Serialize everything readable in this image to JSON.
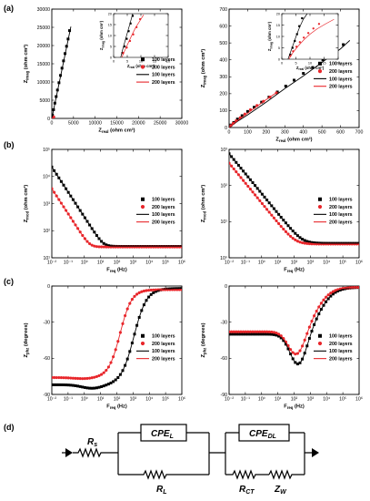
{
  "panel_labels": [
    "(a)",
    "(b)",
    "(c)",
    "(d)"
  ],
  "legend_labels": [
    "100 layers",
    "200 layers",
    "100 layers",
    "200 layers"
  ],
  "colors": {
    "l100": "#000000",
    "l200": "#e8262b"
  },
  "chart_data": [
    {
      "id": "a-left",
      "type": "scatter",
      "xlabel": "Z",
      "xlabel_sub": "real",
      "xlabel_unit": " (ohm cm²)",
      "ylabel": "Z",
      "ylabel_sub": "imag",
      "ylabel_unit": " (ohm cm²)",
      "xlim": [
        0,
        30000
      ],
      "ylim": [
        0,
        30000
      ],
      "xticks": [
        0,
        5000,
        10000,
        15000,
        20000,
        25000,
        30000
      ],
      "xticklabels": [
        "0",
        "5000",
        "10000",
        "15000",
        "20000",
        "25000",
        "30000"
      ],
      "yticks": [
        0,
        5000,
        10000,
        15000,
        20000,
        25000,
        30000
      ],
      "yticklabels": [
        "0",
        "5000",
        "10000",
        "15000",
        "20000",
        "25000",
        "30000"
      ],
      "legend": "right",
      "series": [
        {
          "name": "100 layers",
          "kind": "points",
          "color": "l100",
          "x": [
            150,
            400,
            700,
            1000,
            1300,
            1650,
            2000,
            2350,
            2700,
            3050,
            3400,
            3750,
            4100
          ],
          "y": [
            900,
            2400,
            4200,
            6000,
            7800,
            9800,
            11800,
            13800,
            15800,
            17800,
            19800,
            21800,
            24100
          ]
        },
        {
          "name": "200 layers",
          "kind": "points",
          "color": "l200",
          "x": [
            40,
            80,
            120,
            170,
            230,
            300,
            370,
            450
          ],
          "y": [
            30,
            60,
            100,
            150,
            210,
            280,
            350,
            430
          ]
        },
        {
          "name": "100 layers",
          "kind": "line",
          "color": "l100",
          "x": [
            0,
            4400
          ],
          "y": [
            0,
            25200
          ]
        },
        {
          "name": "200 layers",
          "kind": "line",
          "color": "l200",
          "x": [
            0,
            480
          ],
          "y": [
            0,
            470
          ]
        }
      ],
      "inset": {
        "xlabel": "Z",
        "xlabel_sub": "real",
        "xlabel_unit": " (ohm cm²)",
        "ylabel": "Z",
        "ylabel_sub": "imag",
        "ylabel_unit": " (ohm cm²)",
        "xlim": [
          0,
          20
        ],
        "ylim": [
          0,
          20
        ],
        "xticks": [
          0,
          5,
          10,
          15,
          20
        ],
        "xticklabels": [
          "0",
          "5",
          "10",
          "15",
          "20"
        ],
        "yticks": [
          0,
          5,
          10,
          15,
          20
        ],
        "yticklabels": [
          "0",
          "5",
          "10",
          "15",
          "20"
        ],
        "series": [
          {
            "kind": "points",
            "color": "l100",
            "x": [
              3.2,
              4.0,
              4.8,
              5.5,
              6.2,
              7.0
            ],
            "y": [
              2,
              5,
              8.5,
              12,
              15.5,
              19
            ]
          },
          {
            "kind": "points",
            "color": "l200",
            "x": [
              3.5,
              4.8,
              6.0,
              7.2,
              8.4,
              9.7
            ],
            "y": [
              2,
              4.5,
              7.5,
              10.5,
              13.8,
              17.5
            ]
          },
          {
            "kind": "line",
            "color": "l100",
            "x": [
              2.6,
              3.4,
              4.3,
              5.2,
              6.0,
              7.0
            ],
            "y": [
              0,
              4,
              8,
              12,
              15.5,
              20
            ]
          },
          {
            "kind": "line",
            "color": "l200",
            "x": [
              3.0,
              4.2,
              5.5,
              6.8,
              8.0,
              9.5,
              11
            ],
            "y": [
              0,
              3.5,
              7,
              10.5,
              13.5,
              16.5,
              19.5
            ]
          }
        ]
      }
    },
    {
      "id": "a-right",
      "type": "scatter",
      "xlabel": "Z",
      "xlabel_sub": "real",
      "xlabel_unit": " (ohm cm²)",
      "ylabel": "Z",
      "ylabel_sub": "imag",
      "ylabel_unit": " (ohm cm²)",
      "xlim": [
        0,
        700
      ],
      "ylim": [
        0,
        700
      ],
      "xticks": [
        0,
        100,
        200,
        300,
        400,
        500,
        600,
        700
      ],
      "xticklabels": [
        "0",
        "100",
        "200",
        "300",
        "400",
        "500",
        "600",
        "700"
      ],
      "yticks": [
        0,
        100,
        200,
        300,
        400,
        500,
        600,
        700
      ],
      "yticklabels": [
        "0",
        "100",
        "200",
        "300",
        "400",
        "500",
        "600",
        "700"
      ],
      "legend": "right",
      "series": [
        {
          "name": "100 layers",
          "kind": "points",
          "color": "l100",
          "x": [
            10,
            25,
            45,
            70,
            100,
            135,
            175,
            215,
            260,
            305,
            350,
            400,
            450,
            505,
            560,
            615
          ],
          "y": [
            15,
            30,
            50,
            70,
            95,
            120,
            150,
            180,
            210,
            245,
            280,
            320,
            355,
            400,
            445,
            490
          ]
        },
        {
          "name": "200 layers",
          "kind": "points",
          "color": "l200",
          "x": [
            10,
            22,
            38,
            60,
            85,
            115,
            150,
            185,
            220,
            255
          ],
          "y": [
            12,
            25,
            40,
            58,
            80,
            105,
            130,
            155,
            180,
            205
          ]
        },
        {
          "name": "100 layers",
          "kind": "line",
          "color": "l100",
          "x": [
            0,
            50,
            100,
            200,
            300,
            400,
            500,
            600,
            650
          ],
          "y": [
            0,
            40,
            75,
            150,
            230,
            305,
            385,
            465,
            515
          ]
        },
        {
          "name": "200 layers",
          "kind": "line",
          "color": "l200",
          "x": [
            0,
            50,
            100,
            150,
            200,
            260
          ],
          "y": [
            0,
            45,
            85,
            125,
            165,
            210
          ]
        }
      ],
      "inset": {
        "xlabel": "Z",
        "xlabel_sub": "real",
        "xlabel_unit": " (ohm cm²)",
        "ylabel": "Z",
        "ylabel_sub": "imag",
        "ylabel_unit": " (ohm cm²)",
        "xlim": [
          0,
          20
        ],
        "ylim": [
          0,
          20
        ],
        "xticks": [
          0,
          5,
          10,
          15,
          20
        ],
        "xticklabels": [
          "0",
          "5",
          "10",
          "15",
          "20"
        ],
        "yticks": [
          0,
          5,
          10,
          15,
          20
        ],
        "yticklabels": [
          "0",
          "5",
          "10",
          "15",
          "20"
        ],
        "series": [
          {
            "kind": "points",
            "color": "l100",
            "x": [
              3.0,
              3.8,
              4.6,
              5.4,
              6.2,
              7.2
            ],
            "y": [
              2,
              5,
              8,
              11,
              14.5,
              18
            ]
          },
          {
            "kind": "points",
            "color": "l200",
            "x": [
              3.0,
              4.0,
              5.2,
              6.4,
              7.8,
              9.4,
              11.2,
              13.2
            ],
            "y": [
              1.5,
              3.5,
              5.5,
              7.5,
              9.5,
              11.5,
              13.5,
              15.5
            ]
          },
          {
            "kind": "line",
            "color": "l100",
            "x": [
              2.2,
              3.2,
              4.2,
              5.2,
              6.3,
              7.6,
              9.0
            ],
            "y": [
              0,
              3.5,
              7,
              10.5,
              14,
              17.5,
              20
            ]
          },
          {
            "kind": "line",
            "color": "l200",
            "x": [
              2.5,
              4.0,
              5.8,
              7.8,
              10,
              12.5,
              15.5,
              18.5
            ],
            "y": [
              0,
              3,
              5.8,
              8.5,
              11,
              13.3,
              15.5,
              17.5
            ]
          }
        ]
      }
    },
    {
      "id": "b-left",
      "type": "line",
      "log": true,
      "xlabel": "F",
      "xlabel_sub": "req",
      "xlabel_unit": " (Hz)",
      "ylabel": "Z",
      "ylabel_sub": "mod",
      "ylabel_unit": " (ohm cm²)",
      "xlim": [
        -2,
        6
      ],
      "ylim": [
        1,
        5
      ],
      "xticks": [
        -2,
        -1,
        0,
        1,
        2,
        3,
        4,
        5,
        6
      ],
      "xticklabels": [
        "10⁻²",
        "10⁻¹",
        "10⁰",
        "10¹",
        "10²",
        "10³",
        "10⁴",
        "10⁵",
        "10⁶"
      ],
      "yticks": [
        1,
        2,
        3,
        4,
        5
      ],
      "yticklabels": [
        "10¹",
        "10²",
        "10³",
        "10⁴",
        "10⁵"
      ],
      "legend": "right",
      "series": [
        {
          "name": "100 layers",
          "kind": "points",
          "color": "l100",
          "curve": "mod",
          "p": {
            "hi": 4.35,
            "lo": 1.42,
            "fc": 3.0,
            "slope": 0.92
          }
        },
        {
          "name": "200 layers",
          "kind": "points",
          "color": "l200",
          "curve": "mod",
          "p": {
            "hi": 3.55,
            "lo": 1.4,
            "fc": 2.25,
            "slope": 0.92
          }
        },
        {
          "name": "100 layers",
          "kind": "line",
          "color": "l100",
          "curve": "mod",
          "p": {
            "hi": 4.35,
            "lo": 1.42,
            "fc": 3.0,
            "slope": 0.92
          }
        },
        {
          "name": "200 layers",
          "kind": "line",
          "color": "l200",
          "curve": "mod",
          "p": {
            "hi": 3.55,
            "lo": 1.4,
            "fc": 2.25,
            "slope": 0.92
          }
        }
      ]
    },
    {
      "id": "b-right",
      "type": "line",
      "log": true,
      "xlabel": "F",
      "xlabel_sub": "req",
      "xlabel_unit": " (Hz)",
      "ylabel": "Z",
      "ylabel_sub": "mod",
      "ylabel_unit": " (ohm cm²)",
      "xlim": [
        -2,
        6
      ],
      "ylim": [
        0,
        3
      ],
      "xticks": [
        -2,
        -1,
        0,
        1,
        2,
        3,
        4,
        5,
        6
      ],
      "xticklabels": [
        "10⁻²",
        "10⁻¹",
        "10⁰",
        "10¹",
        "10²",
        "10³",
        "10⁴",
        "10⁵",
        "10⁶"
      ],
      "yticks": [
        0,
        1,
        2,
        3
      ],
      "yticklabels": [
        "10⁰",
        "10¹",
        "10²",
        "10³"
      ],
      "legend": "right",
      "series": [
        {
          "name": "100 layers",
          "kind": "points",
          "color": "l100",
          "curve": "mod",
          "p": {
            "hi": 2.88,
            "lo": 0.4,
            "fc": 2.8,
            "slope": 0.55
          }
        },
        {
          "name": "200 layers",
          "kind": "points",
          "color": "l200",
          "curve": "mod",
          "p": {
            "hi": 2.62,
            "lo": 0.38,
            "fc": 2.6,
            "slope": 0.55
          }
        },
        {
          "name": "100 layers",
          "kind": "line",
          "color": "l100",
          "curve": "mod",
          "p": {
            "hi": 2.88,
            "lo": 0.4,
            "fc": 2.8,
            "slope": 0.55
          }
        },
        {
          "name": "200 layers",
          "kind": "line",
          "color": "l200",
          "curve": "mod",
          "p": {
            "hi": 2.62,
            "lo": 0.38,
            "fc": 2.6,
            "slope": 0.55
          }
        }
      ]
    },
    {
      "id": "c-left",
      "type": "line",
      "xlabel": "F",
      "xlabel_sub": "req",
      "xlabel_unit": " (Hz)",
      "ylabel": "Z",
      "ylabel_sub": "phz",
      "ylabel_unit": " (degrees)",
      "xlim": [
        -2,
        6
      ],
      "ylim": [
        -90,
        0
      ],
      "xticks": [
        -2,
        -1,
        0,
        1,
        2,
        3,
        4,
        5,
        6
      ],
      "xticklabels": [
        "10⁻²",
        "10⁻¹",
        "10⁰",
        "10¹",
        "10²",
        "10³",
        "10⁴",
        "10⁵",
        "10⁶"
      ],
      "yticks": [
        -90,
        -60,
        -30,
        0
      ],
      "yticklabels": [
        "-90",
        "-60",
        "-30",
        "0"
      ],
      "legend": "right",
      "series": [
        {
          "name": "100 layers",
          "kind": "points",
          "color": "l100",
          "curve": "phase",
          "p": {
            "base": -82,
            "top": -2,
            "fc": 3.05,
            "w": 0.55,
            "dip": 3,
            "dipc": 0.5,
            "dipw": 0.9
          }
        },
        {
          "name": "200 layers",
          "kind": "points",
          "color": "l200",
          "curve": "phase",
          "p": {
            "base": -76,
            "top": -3,
            "fc": 2.2,
            "w": 0.5,
            "dip": 1,
            "dipc": 0.0,
            "dipw": 0.9
          }
        },
        {
          "name": "100 layers",
          "kind": "line",
          "color": "l100",
          "curve": "phase",
          "p": {
            "base": -82,
            "top": -2,
            "fc": 3.05,
            "w": 0.55,
            "dip": 3,
            "dipc": 0.5,
            "dipw": 0.9
          }
        },
        {
          "name": "200 layers",
          "kind": "line",
          "color": "l200",
          "curve": "phase",
          "p": {
            "base": -76,
            "top": -3,
            "fc": 2.2,
            "w": 0.5,
            "dip": 1,
            "dipc": 0.0,
            "dipw": 0.9
          }
        }
      ]
    },
    {
      "id": "c-right",
      "type": "line",
      "xlabel": "F",
      "xlabel_sub": "req",
      "xlabel_unit": " (Hz)",
      "ylabel": "Z",
      "ylabel_sub": "phz",
      "ylabel_unit": " (degrees)",
      "xlim": [
        -2,
        6
      ],
      "ylim": [
        -90,
        0
      ],
      "xticks": [
        -2,
        -1,
        0,
        1,
        2,
        3,
        4,
        5,
        6
      ],
      "xticklabels": [
        "10⁻²",
        "10⁻¹",
        "10⁰",
        "10¹",
        "10²",
        "10³",
        "10⁴",
        "10⁵",
        "10⁶"
      ],
      "yticks": [
        -90,
        -60,
        -30,
        0
      ],
      "yticklabels": [
        "-90",
        "-60",
        "-30",
        "0"
      ],
      "legend": "right",
      "series": [
        {
          "name": "100 layers",
          "kind": "points",
          "color": "l100",
          "curve": "dip",
          "p": {
            "base": -40,
            "min": -68,
            "c": 2.3,
            "w": 0.75,
            "top": -1,
            "fc": 3.6,
            "fw": 0.45
          }
        },
        {
          "name": "200 layers",
          "kind": "points",
          "color": "l200",
          "curve": "dip",
          "p": {
            "base": -38,
            "min": -60,
            "c": 2.2,
            "w": 0.75,
            "top": -1,
            "fc": 3.4,
            "fw": 0.45
          }
        },
        {
          "name": "100 layers",
          "kind": "line",
          "color": "l100",
          "curve": "dip",
          "p": {
            "base": -40,
            "min": -68,
            "c": 2.3,
            "w": 0.75,
            "top": -1,
            "fc": 3.6,
            "fw": 0.45
          }
        },
        {
          "name": "200 layers",
          "kind": "line",
          "color": "l200",
          "curve": "dip",
          "p": {
            "base": -38,
            "min": -60,
            "c": 2.2,
            "w": 0.75,
            "top": -1,
            "fc": 3.4,
            "fw": 0.45
          }
        }
      ]
    }
  ],
  "circuit": {
    "Rs": {
      "main": "R",
      "sub": "s"
    },
    "CPEL": {
      "main": "CPE",
      "sub": "L"
    },
    "RL": {
      "main": "R",
      "sub": "L"
    },
    "CPEDL": {
      "main": "CPE",
      "sub": "DL"
    },
    "RCT": {
      "main": "R",
      "sub": "CT"
    },
    "ZW": {
      "main": "Z",
      "sub": "W"
    }
  }
}
